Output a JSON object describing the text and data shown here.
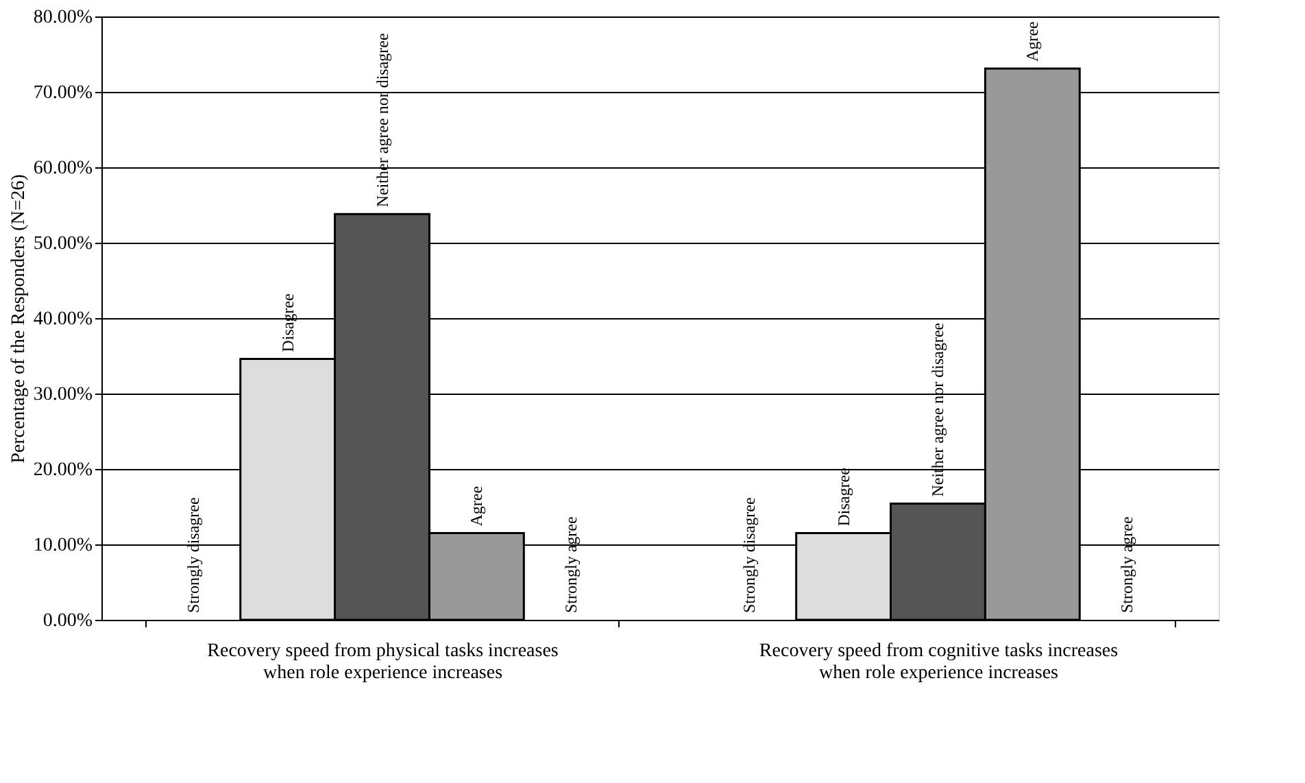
{
  "chart_data": {
    "type": "bar",
    "ylabel": "Percentage of the Responders (N=26)",
    "categories": [
      "Recovery speed from physical tasks increases\nwhen role experience increases",
      "Recovery speed from cognitive tasks increases\nwhen role experience increases"
    ],
    "series": [
      {
        "name": "Strongly disagree",
        "values": [
          0,
          0
        ]
      },
      {
        "name": "Disagree",
        "color": "#dddddd",
        "values": [
          34.6,
          11.5
        ]
      },
      {
        "name": "Neither agree nor disagree",
        "color": "#555555",
        "values": [
          53.8,
          15.4
        ]
      },
      {
        "name": "Agree",
        "color": "#999999",
        "values": [
          11.5,
          73.1
        ]
      },
      {
        "name": "Strongly agree",
        "values": [
          0,
          0
        ]
      }
    ],
    "ylim": [
      0,
      80
    ],
    "yticks": [
      {
        "value": 0,
        "label": "0.00%"
      },
      {
        "value": 10,
        "label": "10.00%"
      },
      {
        "value": 20,
        "label": "20.00%"
      },
      {
        "value": 30,
        "label": "30.00%"
      },
      {
        "value": 40,
        "label": "40.00%"
      },
      {
        "value": 50,
        "label": "50.00%"
      },
      {
        "value": 60,
        "label": "60.00%"
      },
      {
        "value": 70,
        "label": "70.00%"
      },
      {
        "value": 80,
        "label": "80.00%"
      }
    ],
    "grid": "y",
    "legend": false
  }
}
